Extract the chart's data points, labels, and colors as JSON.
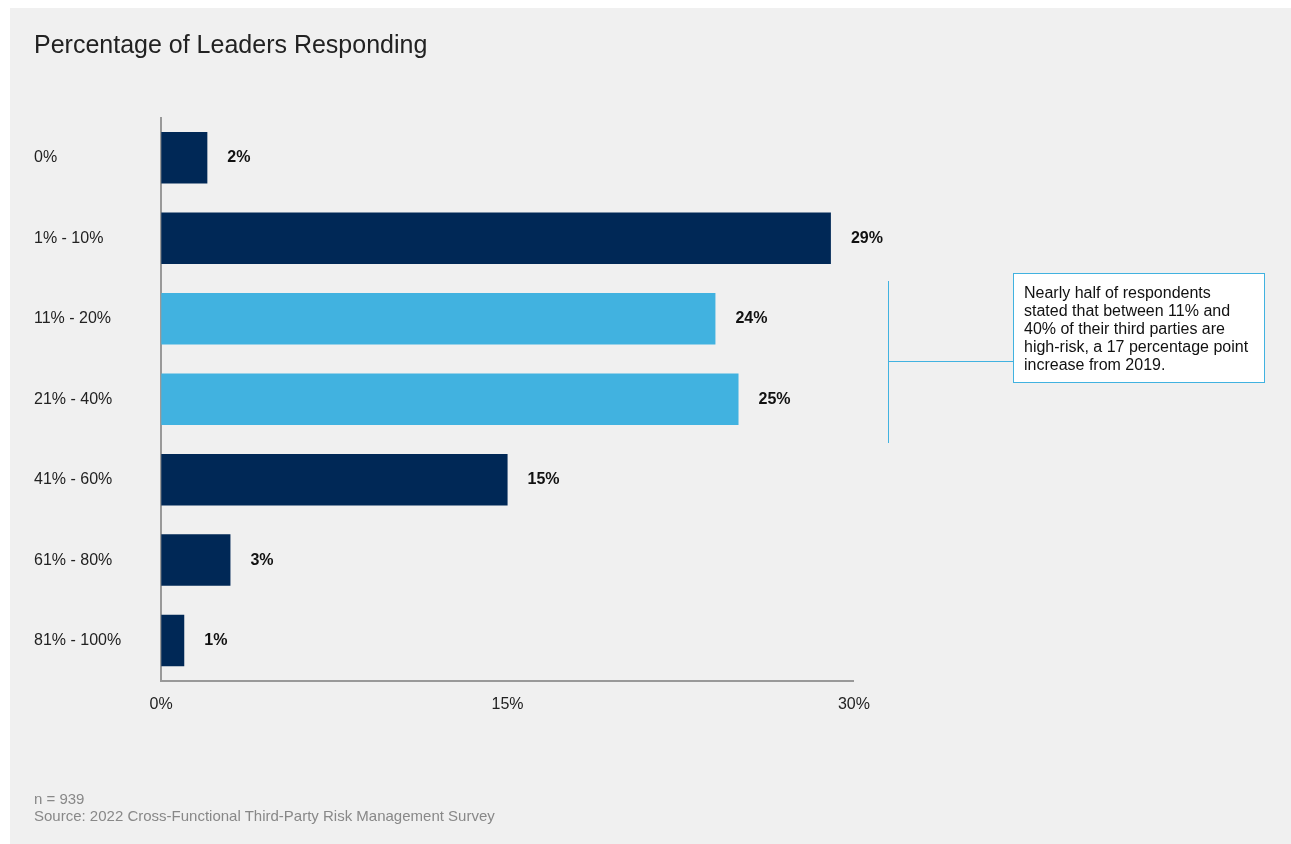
{
  "chart_data": {
    "type": "bar",
    "orientation": "horizontal",
    "title": "Percentage of Leaders Responding",
    "categories": [
      "0%",
      "1% - 10%",
      "11% - 20%",
      "21% - 40%",
      "41% - 60%",
      "61% - 80%",
      "81% - 100%"
    ],
    "values": [
      2,
      29,
      24,
      25,
      15,
      3,
      1
    ],
    "colors": [
      "#002856",
      "#002856",
      "#41b2e0",
      "#41b2e0",
      "#002856",
      "#002856",
      "#002856"
    ],
    "value_labels": [
      "2%",
      "29%",
      "24%",
      "25%",
      "15%",
      "3%",
      "1%"
    ],
    "xlim": [
      0,
      30
    ],
    "xticks": [
      {
        "value": 0,
        "label": "0%"
      },
      {
        "value": 15,
        "label": "15%"
      },
      {
        "value": 30,
        "label": "30%"
      }
    ],
    "grid": false,
    "legend": false,
    "annotations": [
      "Nearly half of respondents stated that between 11% and 40% of their third parties are high-risk, a 17 percentage point increase from 2019.",
      "n = 939",
      "Source: 2022 Cross-Functional Third-Party Risk Management Survey"
    ]
  }
}
